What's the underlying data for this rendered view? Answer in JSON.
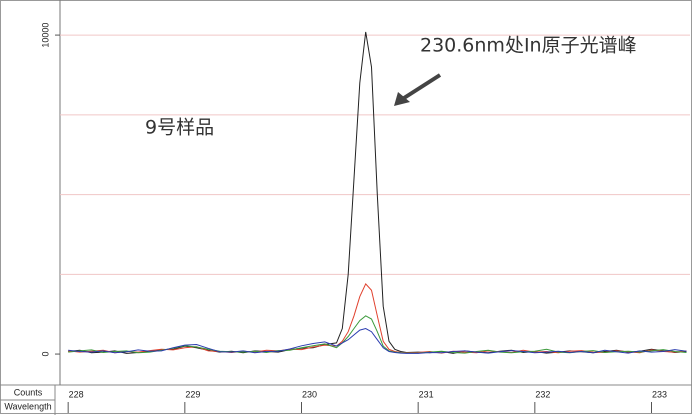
{
  "chart_data": {
    "type": "line",
    "ylabel": "Counts",
    "xlabel": "Wavelength",
    "annotations": [
      "230.6nm处In原子光谱峰",
      "9号样品"
    ],
    "xlim": [
      227.93,
      233.33
    ],
    "ylim": [
      -970,
      11100
    ],
    "xticks": [
      228,
      229,
      230,
      231,
      232,
      233
    ],
    "yticks": [
      0,
      10000
    ],
    "ygrid": [
      2500,
      5000,
      7500,
      10000
    ],
    "grid_color": "#f0c6c6",
    "x": [
      228.0,
      228.1,
      228.2,
      228.3,
      228.4,
      228.5,
      228.6,
      228.7,
      228.8,
      228.9,
      229.0,
      229.1,
      229.2,
      229.3,
      229.4,
      229.5,
      229.6,
      229.7,
      229.8,
      229.9,
      230.0,
      230.1,
      230.2,
      230.3,
      230.35,
      230.4,
      230.45,
      230.5,
      230.55,
      230.6,
      230.65,
      230.7,
      230.75,
      230.8,
      230.85,
      230.9,
      231.0,
      231.1,
      231.2,
      231.3,
      231.4,
      231.5,
      231.6,
      231.7,
      231.8,
      231.9,
      232.0,
      232.1,
      232.2,
      232.3,
      232.4,
      232.5,
      232.6,
      232.7,
      232.8,
      232.9,
      233.0,
      233.1,
      233.2,
      233.3
    ],
    "series": [
      {
        "color": "#222222",
        "values": [
          80,
          120,
          40,
          60,
          100,
          20,
          50,
          90,
          140,
          150,
          250,
          200,
          120,
          60,
          90,
          40,
          100,
          80,
          60,
          140,
          180,
          200,
          300,
          350,
          800,
          2500,
          5500,
          8500,
          10100,
          9000,
          5000,
          1500,
          400,
          150,
          80,
          50,
          60,
          40,
          80,
          20,
          100,
          60,
          40,
          90,
          120,
          50,
          80,
          30,
          60,
          100,
          70,
          40,
          80,
          120,
          60,
          90,
          150,
          100,
          50,
          80
        ]
      },
      {
        "color": "#e0412e",
        "values": [
          100,
          60,
          90,
          120,
          40,
          80,
          60,
          110,
          150,
          130,
          200,
          230,
          100,
          80,
          50,
          90,
          60,
          120,
          100,
          150,
          140,
          220,
          280,
          250,
          400,
          700,
          1200,
          1800,
          2200,
          2000,
          1200,
          400,
          150,
          80,
          50,
          40,
          50,
          80,
          30,
          90,
          60,
          40,
          100,
          70,
          50,
          120,
          60,
          80,
          40,
          90,
          110,
          60,
          50,
          100,
          70,
          40,
          130,
          80,
          60,
          100
        ]
      },
      {
        "color": "#3b9a3b",
        "values": [
          60,
          100,
          130,
          50,
          80,
          100,
          40,
          60,
          120,
          180,
          260,
          220,
          150,
          90,
          70,
          60,
          90,
          50,
          110,
          120,
          200,
          260,
          320,
          200,
          350,
          550,
          800,
          1050,
          1200,
          1100,
          700,
          250,
          100,
          60,
          40,
          30,
          30,
          60,
          90,
          50,
          30,
          80,
          120,
          60,
          40,
          70,
          90,
          150,
          60,
          40,
          80,
          110,
          50,
          70,
          90,
          60,
          100,
          140,
          80,
          50
        ]
      },
      {
        "color": "#2b3cb0",
        "values": [
          120,
          80,
          60,
          100,
          40,
          70,
          130,
          90,
          100,
          200,
          280,
          300,
          180,
          70,
          60,
          100,
          40,
          80,
          90,
          160,
          260,
          330,
          380,
          250,
          350,
          450,
          600,
          750,
          800,
          700,
          450,
          200,
          80,
          50,
          30,
          20,
          20,
          50,
          40,
          80,
          100,
          60,
          30,
          70,
          110,
          80,
          40,
          60,
          90,
          50,
          80,
          40,
          120,
          70,
          30,
          100,
          60,
          80,
          140,
          90
        ]
      }
    ]
  }
}
